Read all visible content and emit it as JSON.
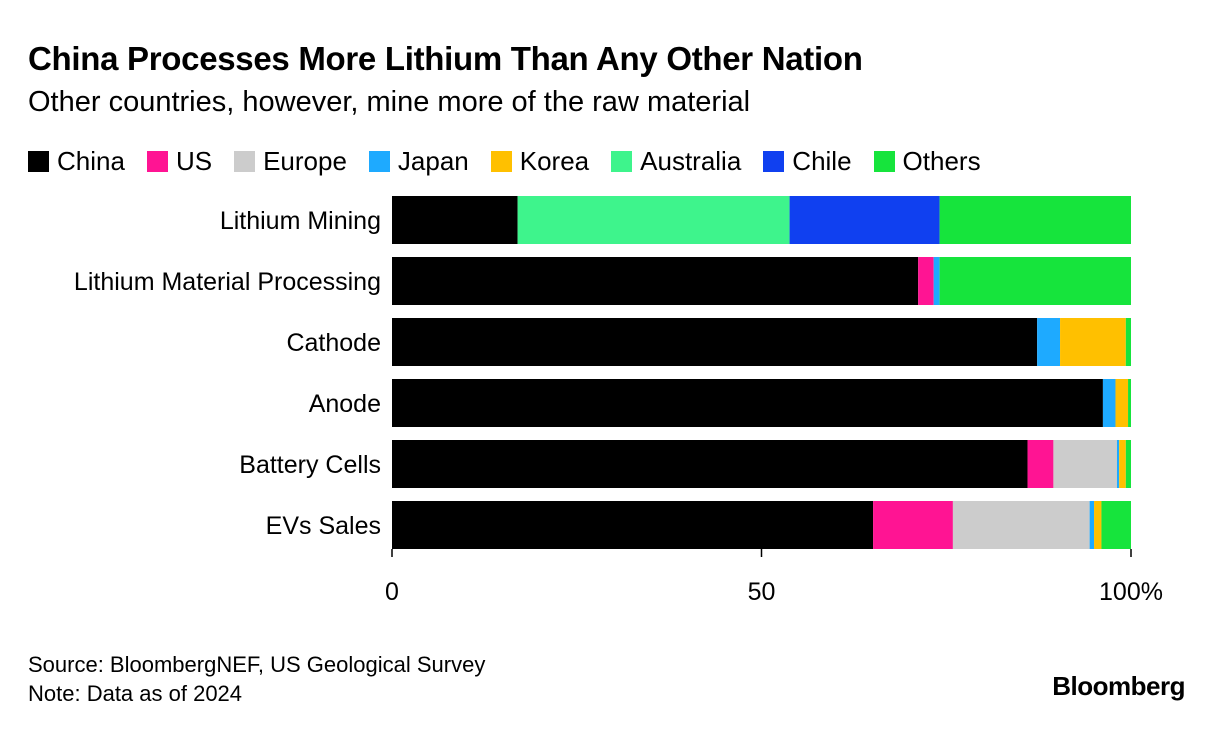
{
  "title": "China Processes More Lithium Than Any Other Nation",
  "subtitle": "Other countries, however, mine more of the raw material",
  "legend": [
    {
      "name": "China",
      "color": "#000000"
    },
    {
      "name": "US",
      "color": "#ff1493"
    },
    {
      "name": "Europe",
      "color": "#cccccc"
    },
    {
      "name": "Japan",
      "color": "#1eaaff"
    },
    {
      "name": "Korea",
      "color": "#ffc000"
    },
    {
      "name": "Australia",
      "color": "#3ef48c"
    },
    {
      "name": "Chile",
      "color": "#1040f0"
    },
    {
      "name": "Others",
      "color": "#16e43c"
    }
  ],
  "chart_data": {
    "type": "bar",
    "orientation": "horizontal",
    "stacked": true,
    "categories": [
      "Lithium Mining",
      "Lithium Material Processing",
      "Cathode",
      "Anode",
      "Battery Cells",
      "EVs Sales"
    ],
    "series": [
      {
        "name": "China",
        "color": "#000000",
        "values": [
          17,
          71.2,
          87.3,
          96.2,
          86.0,
          65.1
        ]
      },
      {
        "name": "US",
        "color": "#ff1493",
        "values": [
          0,
          2.1,
          0,
          0,
          3.5,
          10.8
        ]
      },
      {
        "name": "Europe",
        "color": "#cccccc",
        "values": [
          0,
          0,
          0,
          0,
          8.6,
          18.5
        ]
      },
      {
        "name": "Japan",
        "color": "#1eaaff",
        "values": [
          0,
          0.8,
          3.1,
          1.7,
          0.3,
          0.6
        ]
      },
      {
        "name": "Korea",
        "color": "#ffc000",
        "values": [
          0,
          0,
          8.9,
          1.7,
          0.9,
          1.0
        ]
      },
      {
        "name": "Australia",
        "color": "#3ef48c",
        "values": [
          36.8,
          0,
          0,
          0,
          0,
          0
        ]
      },
      {
        "name": "Chile",
        "color": "#1040f0",
        "values": [
          20.3,
          0,
          0,
          0,
          0,
          0
        ]
      },
      {
        "name": "Others",
        "color": "#16e43c",
        "values": [
          25.9,
          25.9,
          0.7,
          0.4,
          0.7,
          4.0
        ]
      }
    ],
    "xlim": [
      0,
      100
    ],
    "xticks": [
      0,
      50,
      100
    ],
    "xtick_labels": [
      "0",
      "50",
      "100%"
    ],
    "grid": false
  },
  "footer": {
    "source": "Source: BloombergNEF, US Geological Survey",
    "note": "Note: Data as of 2024"
  },
  "brand": "Bloomberg"
}
